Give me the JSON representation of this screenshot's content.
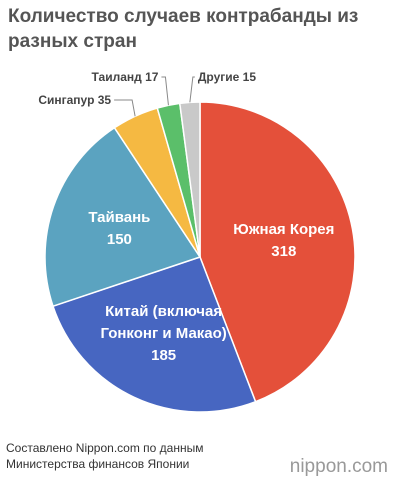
{
  "chart_data": {
    "type": "pie",
    "title": "Количество случаев контрабанды из разных стран",
    "categories": [
      "Южная Корея",
      "Китай (включая Гонконг и Макао)",
      "Тайвань",
      "Сингапур",
      "Таиланд",
      "Другие"
    ],
    "values": [
      318,
      185,
      150,
      35,
      17,
      15
    ],
    "colors": [
      "#e4503a",
      "#4766c1",
      "#5ba3c0",
      "#f5b942",
      "#5bbf6a",
      "#c9c9c9"
    ],
    "source": "Составлено Nippon.com по данным Министерства финансов Японии",
    "logo": "nippon.com"
  }
}
